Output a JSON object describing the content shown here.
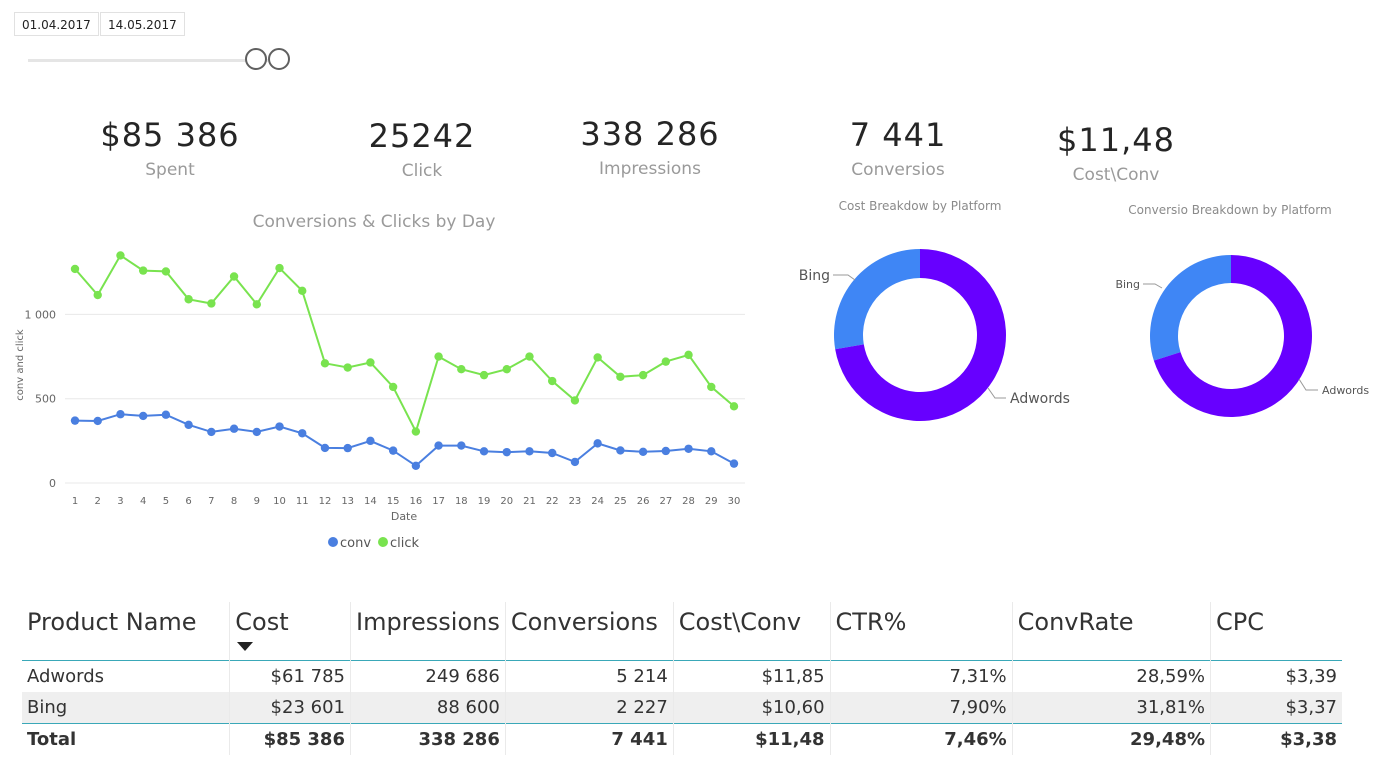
{
  "date_range": {
    "start": "01.04.2017",
    "end": "14.05.2017"
  },
  "kpis": {
    "spent": {
      "value": "$85 386",
      "label": "Spent"
    },
    "click": {
      "value": "25242",
      "label": "Click"
    },
    "impressions": {
      "value": "338 286",
      "label": "Impressions"
    },
    "conversions": {
      "value": "7 441",
      "label": "Conversios"
    },
    "cost_conv": {
      "value": "$11,48",
      "label": "Cost\\Conv"
    }
  },
  "colors": {
    "conv": "#4a7fe0",
    "click": "#79e34f",
    "bing": "#3f86f5",
    "adwords": "#6700ff",
    "accent": "#3aa8b8"
  },
  "chart_data": [
    {
      "type": "line",
      "title": "Conversions & Clicks by Day",
      "xlabel": "Date",
      "ylabel": "conv and click",
      "x": [
        1,
        2,
        3,
        4,
        5,
        6,
        7,
        8,
        9,
        10,
        11,
        12,
        13,
        14,
        15,
        16,
        17,
        18,
        19,
        20,
        21,
        22,
        23,
        24,
        25,
        26,
        27,
        28,
        29,
        30
      ],
      "ylim": [
        0,
        1400
      ],
      "yticks": [
        0,
        500,
        1000
      ],
      "ytick_labels": [
        "0",
        "500",
        "1 000"
      ],
      "grid": true,
      "legend": "bottom-center",
      "series": [
        {
          "name": "conv",
          "values": [
            370,
            368,
            408,
            398,
            405,
            345,
            303,
            322,
            303,
            335,
            295,
            208,
            207,
            250,
            192,
            102,
            222,
            222,
            188,
            183,
            188,
            178,
            125,
            235,
            193,
            185,
            190,
            203,
            188,
            115
          ]
        },
        {
          "name": "click",
          "values": [
            1270,
            1115,
            1350,
            1260,
            1255,
            1090,
            1065,
            1225,
            1060,
            1275,
            1140,
            710,
            685,
            715,
            570,
            305,
            750,
            675,
            640,
            675,
            750,
            605,
            490,
            745,
            630,
            640,
            720,
            760,
            570,
            455
          ]
        }
      ]
    },
    {
      "type": "pie",
      "title": "Cost Breakdow by Platform",
      "labels": [
        "Bing",
        "Adwords"
      ],
      "values": [
        23601,
        61785
      ]
    },
    {
      "type": "pie",
      "title": "Conversio Breakdown by Platform",
      "labels": [
        "Bing",
        "Adwords"
      ],
      "values": [
        2227,
        5214
      ]
    }
  ],
  "table": {
    "headers": [
      "Product Name",
      "Cost",
      "Impressions",
      "Conversions",
      "Cost\\Conv",
      "CTR%",
      "ConvRate",
      "CPC"
    ],
    "rows": [
      [
        "Adwords",
        "$61 785",
        "249 686",
        "5 214",
        "$11,85",
        "7,31%",
        "28,59%",
        "$3,39"
      ],
      [
        "Bing",
        "$23 601",
        "88 600",
        "2 227",
        "$10,60",
        "7,90%",
        "31,81%",
        "$3,37"
      ]
    ],
    "total": [
      "Total",
      "$85 386",
      "338 286",
      "7 441",
      "$11,48",
      "7,46%",
      "29,48%",
      "$3,38"
    ]
  }
}
